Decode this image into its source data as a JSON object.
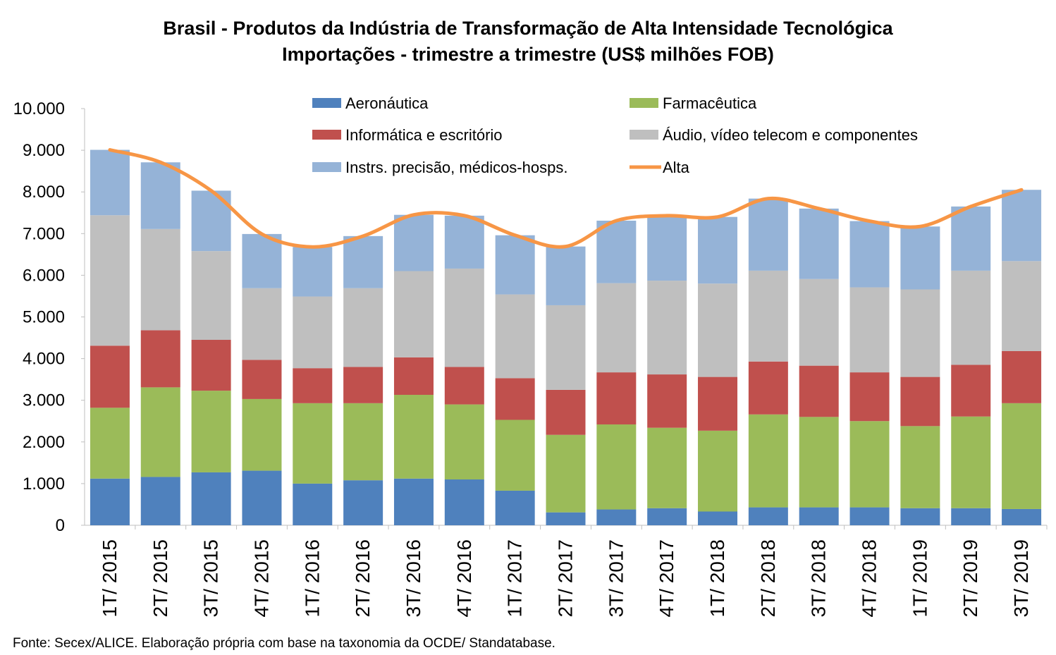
{
  "chart_data": {
    "type": "bar",
    "title": "Brasil - Produtos da Indústria de Transformação de Alta Intensidade Tecnológica",
    "subtitle": "Importações - trimestre a trimestre (US$ milhões FOB)",
    "source": "Fonte: Secex/ALICE. Elaboração própria com base na taxonomia da OCDE/ Standatabase.",
    "categories": [
      "1T/ 2015",
      "2T/ 2015",
      "3T/ 2015",
      "4T/ 2015",
      "1T/ 2016",
      "2T/ 2016",
      "3T/ 2016",
      "4T/ 2016",
      "1T/ 2017",
      "2T/ 2017",
      "3T/ 2017",
      "4T/ 2017",
      "1T/ 2018",
      "2T/ 2018",
      "3T/ 2018",
      "4T/ 2018",
      "1T/ 2019",
      "2T/ 2019",
      "3T/ 2019"
    ],
    "yticks": [
      "0",
      "1.000",
      "2.000",
      "3.000",
      "4.000",
      "5.000",
      "6.000",
      "7.000",
      "8.000",
      "9.000",
      "10.000"
    ],
    "ylim": [
      0,
      10000
    ],
    "stacked": true,
    "legend_position": "top",
    "series": [
      {
        "name": "Aeronáutica",
        "color": "#4f81bd",
        "values": [
          1120,
          1160,
          1270,
          1310,
          1000,
          1080,
          1120,
          1100,
          830,
          310,
          380,
          410,
          330,
          430,
          430,
          430,
          410,
          410,
          390
        ]
      },
      {
        "name": "Farmacêutica",
        "color": "#9bbb59",
        "values": [
          1700,
          2150,
          1960,
          1720,
          1930,
          1850,
          2010,
          1800,
          1700,
          1860,
          2040,
          1930,
          1940,
          2230,
          2170,
          2070,
          1970,
          2200,
          2540
        ]
      },
      {
        "name": "Informática e escritório",
        "color": "#c0504d",
        "values": [
          1490,
          1370,
          1220,
          940,
          840,
          870,
          900,
          900,
          1000,
          1080,
          1250,
          1280,
          1290,
          1270,
          1230,
          1170,
          1180,
          1240,
          1250
        ]
      },
      {
        "name": "Áudio, vídeo telecom e componentes",
        "color": "#bfbfbf",
        "values": [
          3130,
          2430,
          2130,
          1720,
          1720,
          1890,
          2070,
          2360,
          2010,
          2030,
          2140,
          2250,
          2240,
          2180,
          2080,
          2040,
          2100,
          2260,
          2160
        ]
      },
      {
        "name": "Instrs. precisão, médicos-hosps.",
        "color": "#95b3d7",
        "values": [
          1570,
          1600,
          1450,
          1300,
          1190,
          1250,
          1350,
          1270,
          1420,
          1410,
          1500,
          1560,
          1600,
          1730,
          1690,
          1590,
          1510,
          1540,
          1710
        ]
      }
    ],
    "line": {
      "name": "Alta",
      "color": "#f79646",
      "values": [
        9010,
        8710,
        8030,
        6990,
        6680,
        6940,
        7450,
        7430,
        6960,
        6690,
        7310,
        7430,
        7400,
        7840,
        7600,
        7300,
        7170,
        7650,
        8050
      ]
    }
  }
}
